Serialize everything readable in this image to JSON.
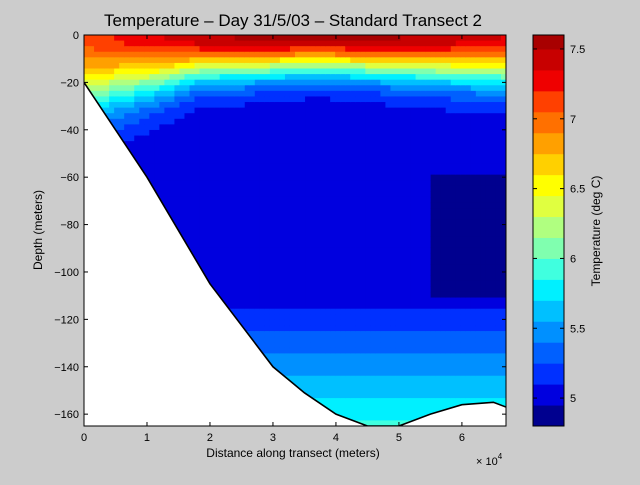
{
  "chart_data": {
    "type": "heatmap",
    "subtype": "filled-contour",
    "title": "Temperature – Day 31/5/03 – Standard Transect 2",
    "xlabel": "Distance along transect (meters)",
    "ylabel": "Depth (meters)",
    "x_exponent_label": "× 10",
    "x_exponent_power": "4",
    "colorbar_label": "Temperature (deg C)",
    "xlim": [
      0,
      67000
    ],
    "ylim": [
      -165,
      0
    ],
    "x_ticks": [
      0,
      10000,
      20000,
      30000,
      40000,
      50000,
      60000
    ],
    "x_tick_labels": [
      "0",
      "1",
      "2",
      "3",
      "4",
      "5",
      "6"
    ],
    "y_ticks": [
      0,
      -20,
      -40,
      -60,
      -80,
      -100,
      -120,
      -140,
      -160
    ],
    "y_tick_labels": [
      "0",
      "−20",
      "−40",
      "−60",
      "−80",
      "−100",
      "−120",
      "−140",
      "−160"
    ],
    "clim": [
      4.8,
      7.6
    ],
    "colorbar_ticks": [
      5,
      5.5,
      6,
      6.5,
      7,
      7.5
    ],
    "colorbar_tick_labels": [
      "5",
      "5.5",
      "6",
      "6.5",
      "7",
      "7.5"
    ],
    "levels": [
      4.8,
      4.95,
      5.1,
      5.25,
      5.4,
      5.55,
      5.7,
      5.85,
      6.0,
      6.15,
      6.3,
      6.45,
      6.6,
      6.75,
      6.9,
      7.05,
      7.2,
      7.35,
      7.5,
      7.6
    ],
    "colormap": [
      "#00008f",
      "#0000df",
      "#0030ff",
      "#0060ff",
      "#0090ff",
      "#00c0ff",
      "#00f0ff",
      "#40ffdf",
      "#80ffaf",
      "#b0ff80",
      "#e0ff40",
      "#ffff00",
      "#ffd000",
      "#ffa000",
      "#ff7000",
      "#ff4000",
      "#ef0000",
      "#c80000",
      "#a80000"
    ],
    "bottom_profile": [
      [
        0,
        -20
      ],
      [
        10000,
        -60
      ],
      [
        20000,
        -105
      ],
      [
        30000,
        -140
      ],
      [
        35000,
        -151
      ],
      [
        40000,
        -160
      ],
      [
        45000,
        -165
      ],
      [
        50000,
        -165
      ],
      [
        55000,
        -160
      ],
      [
        60000,
        -156
      ],
      [
        65000,
        -155
      ],
      [
        67000,
        -157
      ]
    ],
    "grid": false,
    "legend": "colorbar-right"
  }
}
